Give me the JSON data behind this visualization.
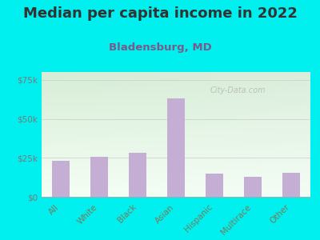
{
  "title": "Median per capita income in 2022",
  "subtitle": "Bladensburg, MD",
  "categories": [
    "All",
    "White",
    "Black",
    "Asian",
    "Hispanic",
    "Multirace",
    "Other"
  ],
  "values": [
    23000,
    25500,
    28000,
    63000,
    15000,
    13000,
    15500
  ],
  "bar_color": "#c4aed4",
  "background_color": "#00EFEF",
  "chart_bg_color_topleft": "#d8eed8",
  "chart_bg_color_topright": "#e8f0e8",
  "chart_bg_color_bottom": "#f5fff5",
  "title_color": "#333333",
  "subtitle_color": "#7a5a8a",
  "tick_color": "#7a7a5a",
  "ytick_color": "#7a7a7a",
  "ylim": [
    0,
    80000
  ],
  "yticks": [
    0,
    25000,
    50000,
    75000
  ],
  "ytick_labels": [
    "$0",
    "$25k",
    "$50k",
    "$75k"
  ],
  "watermark": "City-Data.com",
  "title_fontsize": 13,
  "subtitle_fontsize": 9.5,
  "tick_fontsize": 7.5,
  "ytick_fontsize": 7.5
}
